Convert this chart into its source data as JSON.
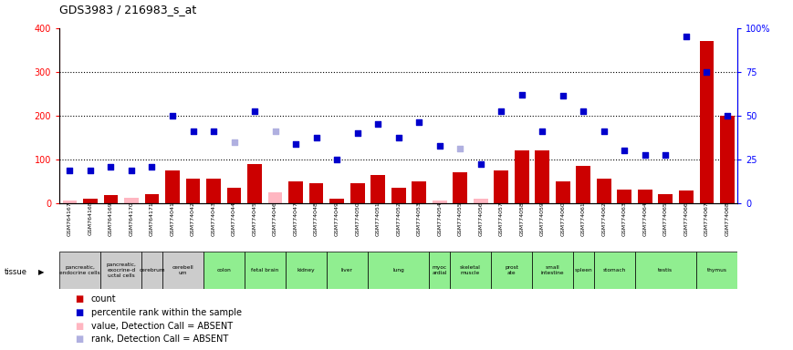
{
  "title": "GDS3983 / 216983_s_at",
  "samples": [
    "GSM764167",
    "GSM764168",
    "GSM764169",
    "GSM764170",
    "GSM764171",
    "GSM774041",
    "GSM774042",
    "GSM774043",
    "GSM774044",
    "GSM774045",
    "GSM774046",
    "GSM774047",
    "GSM774048",
    "GSM774049",
    "GSM774050",
    "GSM774051",
    "GSM774052",
    "GSM774053",
    "GSM774054",
    "GSM774055",
    "GSM774056",
    "GSM774057",
    "GSM774058",
    "GSM774059",
    "GSM774060",
    "GSM774061",
    "GSM774062",
    "GSM774063",
    "GSM774064",
    "GSM774065",
    "GSM774066",
    "GSM774067",
    "GSM774068"
  ],
  "count": [
    5,
    10,
    18,
    12,
    20,
    75,
    55,
    55,
    35,
    90,
    25,
    50,
    45,
    10,
    45,
    65,
    35,
    50,
    5,
    70,
    10,
    75,
    120,
    120,
    50,
    85,
    55,
    30,
    30,
    20,
    28,
    370,
    200
  ],
  "count_absent": [
    true,
    false,
    false,
    true,
    false,
    false,
    false,
    false,
    false,
    false,
    true,
    false,
    false,
    false,
    false,
    false,
    false,
    false,
    true,
    false,
    true,
    false,
    false,
    false,
    false,
    false,
    false,
    false,
    false,
    false,
    false,
    false,
    false
  ],
  "rank": [
    75,
    75,
    82,
    75,
    82,
    200,
    165,
    165,
    140,
    210,
    165,
    135,
    150,
    100,
    160,
    180,
    150,
    185,
    130,
    125,
    90,
    210,
    248,
    165,
    245,
    210,
    165,
    120,
    110,
    110,
    380,
    300,
    200
  ],
  "rank_absent": [
    false,
    false,
    false,
    false,
    false,
    false,
    false,
    false,
    true,
    false,
    true,
    false,
    false,
    false,
    false,
    false,
    false,
    false,
    false,
    true,
    false,
    false,
    false,
    false,
    false,
    false,
    false,
    false,
    false,
    false,
    false,
    false,
    false
  ],
  "tissues": [
    {
      "name": "pancreatic,\nendocrine cells",
      "start": 0,
      "end": 2,
      "color": "#cccccc"
    },
    {
      "name": "pancreatic,\nexocrine-d\nuctal cells",
      "start": 2,
      "end": 4,
      "color": "#cccccc"
    },
    {
      "name": "cerebrum",
      "start": 4,
      "end": 5,
      "color": "#cccccc"
    },
    {
      "name": "cerebell\num",
      "start": 5,
      "end": 7,
      "color": "#cccccc"
    },
    {
      "name": "colon",
      "start": 7,
      "end": 9,
      "color": "#90ee90"
    },
    {
      "name": "fetal brain",
      "start": 9,
      "end": 11,
      "color": "#90ee90"
    },
    {
      "name": "kidney",
      "start": 11,
      "end": 13,
      "color": "#90ee90"
    },
    {
      "name": "liver",
      "start": 13,
      "end": 15,
      "color": "#90ee90"
    },
    {
      "name": "lung",
      "start": 15,
      "end": 18,
      "color": "#90ee90"
    },
    {
      "name": "myoc\nardial",
      "start": 18,
      "end": 19,
      "color": "#90ee90"
    },
    {
      "name": "skeletal\nmuscle",
      "start": 19,
      "end": 21,
      "color": "#90ee90"
    },
    {
      "name": "prost\nate",
      "start": 21,
      "end": 23,
      "color": "#90ee90"
    },
    {
      "name": "small\nintestine",
      "start": 23,
      "end": 25,
      "color": "#90ee90"
    },
    {
      "name": "spleen",
      "start": 25,
      "end": 26,
      "color": "#90ee90"
    },
    {
      "name": "stomach",
      "start": 26,
      "end": 28,
      "color": "#90ee90"
    },
    {
      "name": "testis",
      "start": 28,
      "end": 31,
      "color": "#90ee90"
    },
    {
      "name": "thymus",
      "start": 31,
      "end": 33,
      "color": "#90ee90"
    }
  ],
  "ylim_left": [
    0,
    400
  ],
  "ylim_right": [
    0,
    100
  ],
  "yticks_left": [
    0,
    100,
    200,
    300,
    400
  ],
  "yticks_right": [
    0,
    25,
    50,
    75,
    100
  ],
  "bar_color": "#cc0000",
  "bar_absent_color": "#ffb6c1",
  "rank_color": "#0000cc",
  "rank_absent_color": "#b0b0e0",
  "bg_color": "#ffffff",
  "plot_bg": "#ffffff",
  "xtick_bg": "#cccccc"
}
